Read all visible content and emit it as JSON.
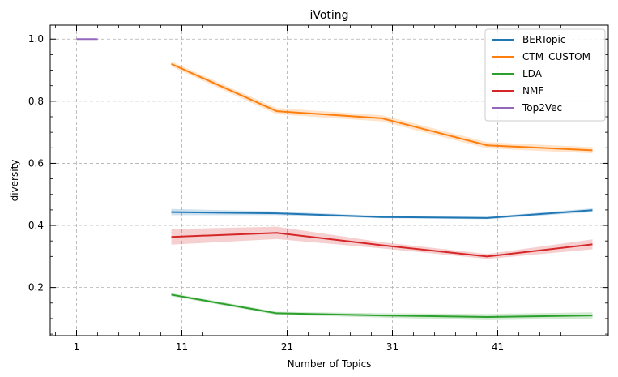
{
  "chart_data": {
    "type": "line",
    "title": "iVoting",
    "xlabel": "Number of Topics",
    "ylabel": "diversity",
    "xlim": [
      -1.5,
      51.5
    ],
    "ylim": [
      0.045,
      1.045
    ],
    "x_ticks": [
      1,
      11,
      21,
      31,
      41
    ],
    "x_tick_labels": [
      "1",
      "11",
      "21",
      "31",
      "41"
    ],
    "y_ticks": [
      0.2,
      0.4,
      0.6,
      0.8,
      1.0
    ],
    "y_tick_labels": [
      "0.2",
      "0.4",
      "0.6",
      "0.8",
      "1.0"
    ],
    "grid": true,
    "grid_style": "dashed",
    "legend_position": "top-right",
    "series": [
      {
        "name": "BERTopic",
        "color": "#1f77b4",
        "x": [
          10,
          20,
          30,
          40,
          50
        ],
        "y": [
          0.443,
          0.439,
          0.427,
          0.424,
          0.449
        ],
        "lower": [
          0.433,
          0.433,
          0.423,
          0.42,
          0.443
        ],
        "upper": [
          0.453,
          0.445,
          0.431,
          0.428,
          0.455
        ]
      },
      {
        "name": "CTM_CUSTOM",
        "color": "#ff7f0e",
        "x": [
          10,
          20,
          30,
          40,
          50
        ],
        "y": [
          0.92,
          0.768,
          0.745,
          0.658,
          0.642
        ],
        "lower": [
          0.912,
          0.758,
          0.735,
          0.648,
          0.632
        ],
        "upper": [
          0.928,
          0.778,
          0.755,
          0.668,
          0.652
        ]
      },
      {
        "name": "LDA",
        "color": "#2ca02c",
        "x": [
          10,
          20,
          30,
          40,
          50
        ],
        "y": [
          0.177,
          0.117,
          0.11,
          0.105,
          0.11
        ],
        "lower": [
          0.172,
          0.112,
          0.103,
          0.095,
          0.1
        ],
        "upper": [
          0.182,
          0.122,
          0.117,
          0.115,
          0.12
        ]
      },
      {
        "name": "NMF",
        "color": "#d62728",
        "x": [
          10,
          20,
          30,
          40,
          50
        ],
        "y": [
          0.363,
          0.376,
          0.336,
          0.3,
          0.339
        ],
        "lower": [
          0.338,
          0.356,
          0.326,
          0.292,
          0.323
        ],
        "upper": [
          0.388,
          0.396,
          0.346,
          0.308,
          0.355
        ]
      },
      {
        "name": "Top2Vec",
        "color": "#9467bd",
        "x": [
          1,
          3
        ],
        "y": [
          1.0,
          1.0
        ],
        "lower": [
          1.0,
          1.0
        ],
        "upper": [
          1.0,
          1.0
        ]
      }
    ]
  }
}
